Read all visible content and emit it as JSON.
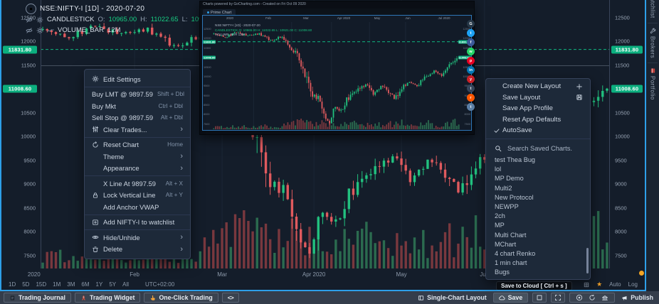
{
  "colors": {
    "accent_blue": "#2d9fe8",
    "candle_green": "#22c17f",
    "candle_red": "#e05a5e",
    "tag_green": "#0caf7f",
    "star_orange": "#f0a029",
    "dot_orange": "#f5a623"
  },
  "header": {
    "symbol": "NSE:NIFTY-I [1D] - 2020-07-20",
    "indicator": "CANDLESTICK",
    "ohlc_parts": [
      [
        "O:",
        "10965.00"
      ],
      [
        "H:",
        "11022.65"
      ],
      [
        "L:",
        "10921.00"
      ],
      [
        "C:",
        "11008.60"
      ]
    ],
    "volume_indicator": "VOLUME_BAR",
    "volume_value": "12M"
  },
  "chart_data": {
    "type": "candlestick",
    "symbol": "NSE:NIFTY-I",
    "interval": "1D",
    "date": "2020-07-20",
    "ohlc": {
      "open": 10965.0,
      "high": 11022.65,
      "low": 10921.0,
      "close": 11008.6
    },
    "volume_indicator": "VOLUME_BAR 12M",
    "price_levels": [
      {
        "value": 11831.8,
        "style": "dashed-green"
      },
      {
        "value": 11008.6,
        "style": "tag-only"
      }
    ],
    "y_ticks": [
      12500,
      12000,
      11500,
      10500,
      10000,
      9500,
      9000,
      8500,
      8000,
      7500
    ],
    "ylim": [
      7230,
      12870
    ],
    "n_candles": 130,
    "x_labels": [
      {
        "label": "2020",
        "i": -2
      },
      {
        "label": "Feb",
        "i": 21
      },
      {
        "label": "Mar",
        "i": 41
      },
      {
        "label": "Apr 2020",
        "i": 62
      },
      {
        "label": "May",
        "i": 82
      },
      {
        "label": "Jun",
        "i": 101
      }
    ],
    "close_path": [
      [
        0,
        12250
      ],
      [
        6,
        12100
      ],
      [
        12,
        12330
      ],
      [
        18,
        12150
      ],
      [
        24,
        12250
      ],
      [
        30,
        11900
      ],
      [
        36,
        12100
      ],
      [
        40,
        11600
      ],
      [
        44,
        11100
      ],
      [
        48,
        10200
      ],
      [
        52,
        9000
      ],
      [
        56,
        8800
      ],
      [
        58,
        7900
      ],
      [
        61,
        7600
      ],
      [
        64,
        8400
      ],
      [
        67,
        8200
      ],
      [
        70,
        8750
      ],
      [
        75,
        9200
      ],
      [
        80,
        9550
      ],
      [
        84,
        9100
      ],
      [
        88,
        9500
      ],
      [
        92,
        9200
      ],
      [
        95,
        8850
      ],
      [
        99,
        9450
      ],
      [
        103,
        9700
      ],
      [
        107,
        9500
      ],
      [
        112,
        10000
      ],
      [
        116,
        10300
      ],
      [
        120,
        10050
      ],
      [
        124,
        10550
      ],
      [
        127,
        10800
      ],
      [
        129,
        11008.6
      ]
    ]
  },
  "price_tags": [
    "11831.80",
    "11008.60"
  ],
  "context_menu": {
    "sections": [
      [
        {
          "icon": "gear",
          "label": "Edit Settings"
        }
      ],
      [
        {
          "label": "Buy LMT @ 9897.59",
          "shortcut": "Shift + Dbl"
        },
        {
          "label": "Buy Mkt",
          "shortcut": "Ctrl + Dbl"
        },
        {
          "label": "Sell Stop @ 9897.59",
          "shortcut": "Alt + Dbl"
        },
        {
          "icon": "sliders",
          "label": "Clear Trades...",
          "submenu": true
        }
      ],
      [
        {
          "icon": "reset",
          "label": "Reset Chart",
          "shortcut": "Home"
        },
        {
          "label": "Theme",
          "submenu": true,
          "indent": true
        },
        {
          "label": "Appearance",
          "submenu": true,
          "indent": true
        }
      ],
      [
        {
          "label": "X Line At 9897.59",
          "shortcut": "Alt + X",
          "indent": true
        },
        {
          "icon": "lock",
          "label": "Lock Vertical Line",
          "shortcut": "Alt + Y"
        },
        {
          "label": "Add Anchor VWAP",
          "indent": true
        }
      ],
      [
        {
          "icon": "watchlist-add",
          "label": "Add NIFTY-I to watchlist"
        }
      ],
      [
        {
          "icon": "eye",
          "label": "Hide/Unhide",
          "submenu": true
        },
        {
          "icon": "trash",
          "label": "Delete",
          "submenu": true
        }
      ]
    ]
  },
  "layout_menu": {
    "items": [
      {
        "label": "Create New Layout",
        "right_icon": "plus"
      },
      {
        "label": "Save Layout",
        "right_icon": "floppy"
      },
      {
        "label": "Save App Profile"
      },
      {
        "label": "Reset App Defaults"
      },
      {
        "label": "AutoSave",
        "left_icon": "check"
      }
    ],
    "search_placeholder": "Search Saved Charts.",
    "saved_charts": [
      "test Thea Bug",
      "lol",
      "MP Demo",
      "Multi2",
      "New Protocol",
      "NEWPP",
      "2ch",
      "MP",
      "Multi Chart",
      "MChart",
      "4 chart Renko",
      "1 min chart",
      "Bugs"
    ]
  },
  "popup": {
    "header": "Charts powered by GoCharting.com  -  Created on Fri Oct 09 2020",
    "tab": "Prime Chart",
    "dates": [
      "2020",
      "Feb",
      "Mar",
      "Apr 2020",
      "May",
      "Jun",
      "Jul 2020"
    ],
    "legend_symbol": "NSE:NIFTY-I [1D] - 2020-07-20",
    "legend_candle": "CANDLESTICK O: 10965.00 H: 11022.65 L: 10921.00 C: 11008.60",
    "legend_volume": "VOLUME_BAR 12M",
    "tags": [
      "11831.80",
      "11008.60"
    ]
  },
  "share": {
    "icons": [
      {
        "name": "gocharting",
        "color": "#253646",
        "glyph": "G"
      },
      {
        "name": "twitter",
        "color": "#1da1f2",
        "glyph": "t"
      },
      {
        "name": "facebook",
        "color": "#3b5998",
        "glyph": "f"
      },
      {
        "name": "whatsapp",
        "color": "#25d366",
        "glyph": "w"
      },
      {
        "name": "pinterest",
        "color": "#e60023",
        "glyph": "p"
      },
      {
        "name": "linkedin",
        "color": "#0077b5",
        "glyph": "in"
      },
      {
        "name": "youtube",
        "color": "#cb2027",
        "glyph": "y"
      },
      {
        "name": "tumblr",
        "color": "#35465c",
        "glyph": "t"
      },
      {
        "name": "reddit",
        "color": "#ff5700",
        "glyph": "r"
      },
      {
        "name": "telegram",
        "color": "#5b7fa6",
        "glyph": "t"
      }
    ]
  },
  "timeframe_bar": {
    "items": [
      "1D",
      "5D",
      "15D",
      "1M",
      "3M",
      "6M",
      "1Y",
      "5Y",
      "All"
    ],
    "timezone": "UTC+02:00",
    "auto": "Auto",
    "log": "Log"
  },
  "sidebar": {
    "tabs": [
      {
        "label": "Watchlist"
      },
      {
        "icon": "wrench",
        "label": "Brokers"
      },
      {
        "icon": "portfolio",
        "label": "Portfolio"
      }
    ]
  },
  "bottom_bar": {
    "left": [
      {
        "icon": "journal",
        "label": "Trading Journal"
      },
      {
        "icon": "rocket",
        "label": "Trading Widget"
      },
      {
        "icon": "hand",
        "label": "One-Click Trading"
      },
      {
        "icon": "code",
        "label": "<>"
      }
    ],
    "right": [
      {
        "icon": "layout",
        "label": "Single-Chart Layout"
      },
      {
        "icon": "cloud",
        "label": "Save"
      },
      {
        "icon": "square"
      },
      {
        "icon": "expand"
      },
      {
        "icon": "screenshot"
      },
      {
        "icon": "sync"
      },
      {
        "icon": "exchange"
      },
      {
        "icon": "megaphone",
        "label": "Publish"
      }
    ]
  },
  "tooltip": {
    "text": "Save to Cloud [ Ctrl + s ]"
  }
}
